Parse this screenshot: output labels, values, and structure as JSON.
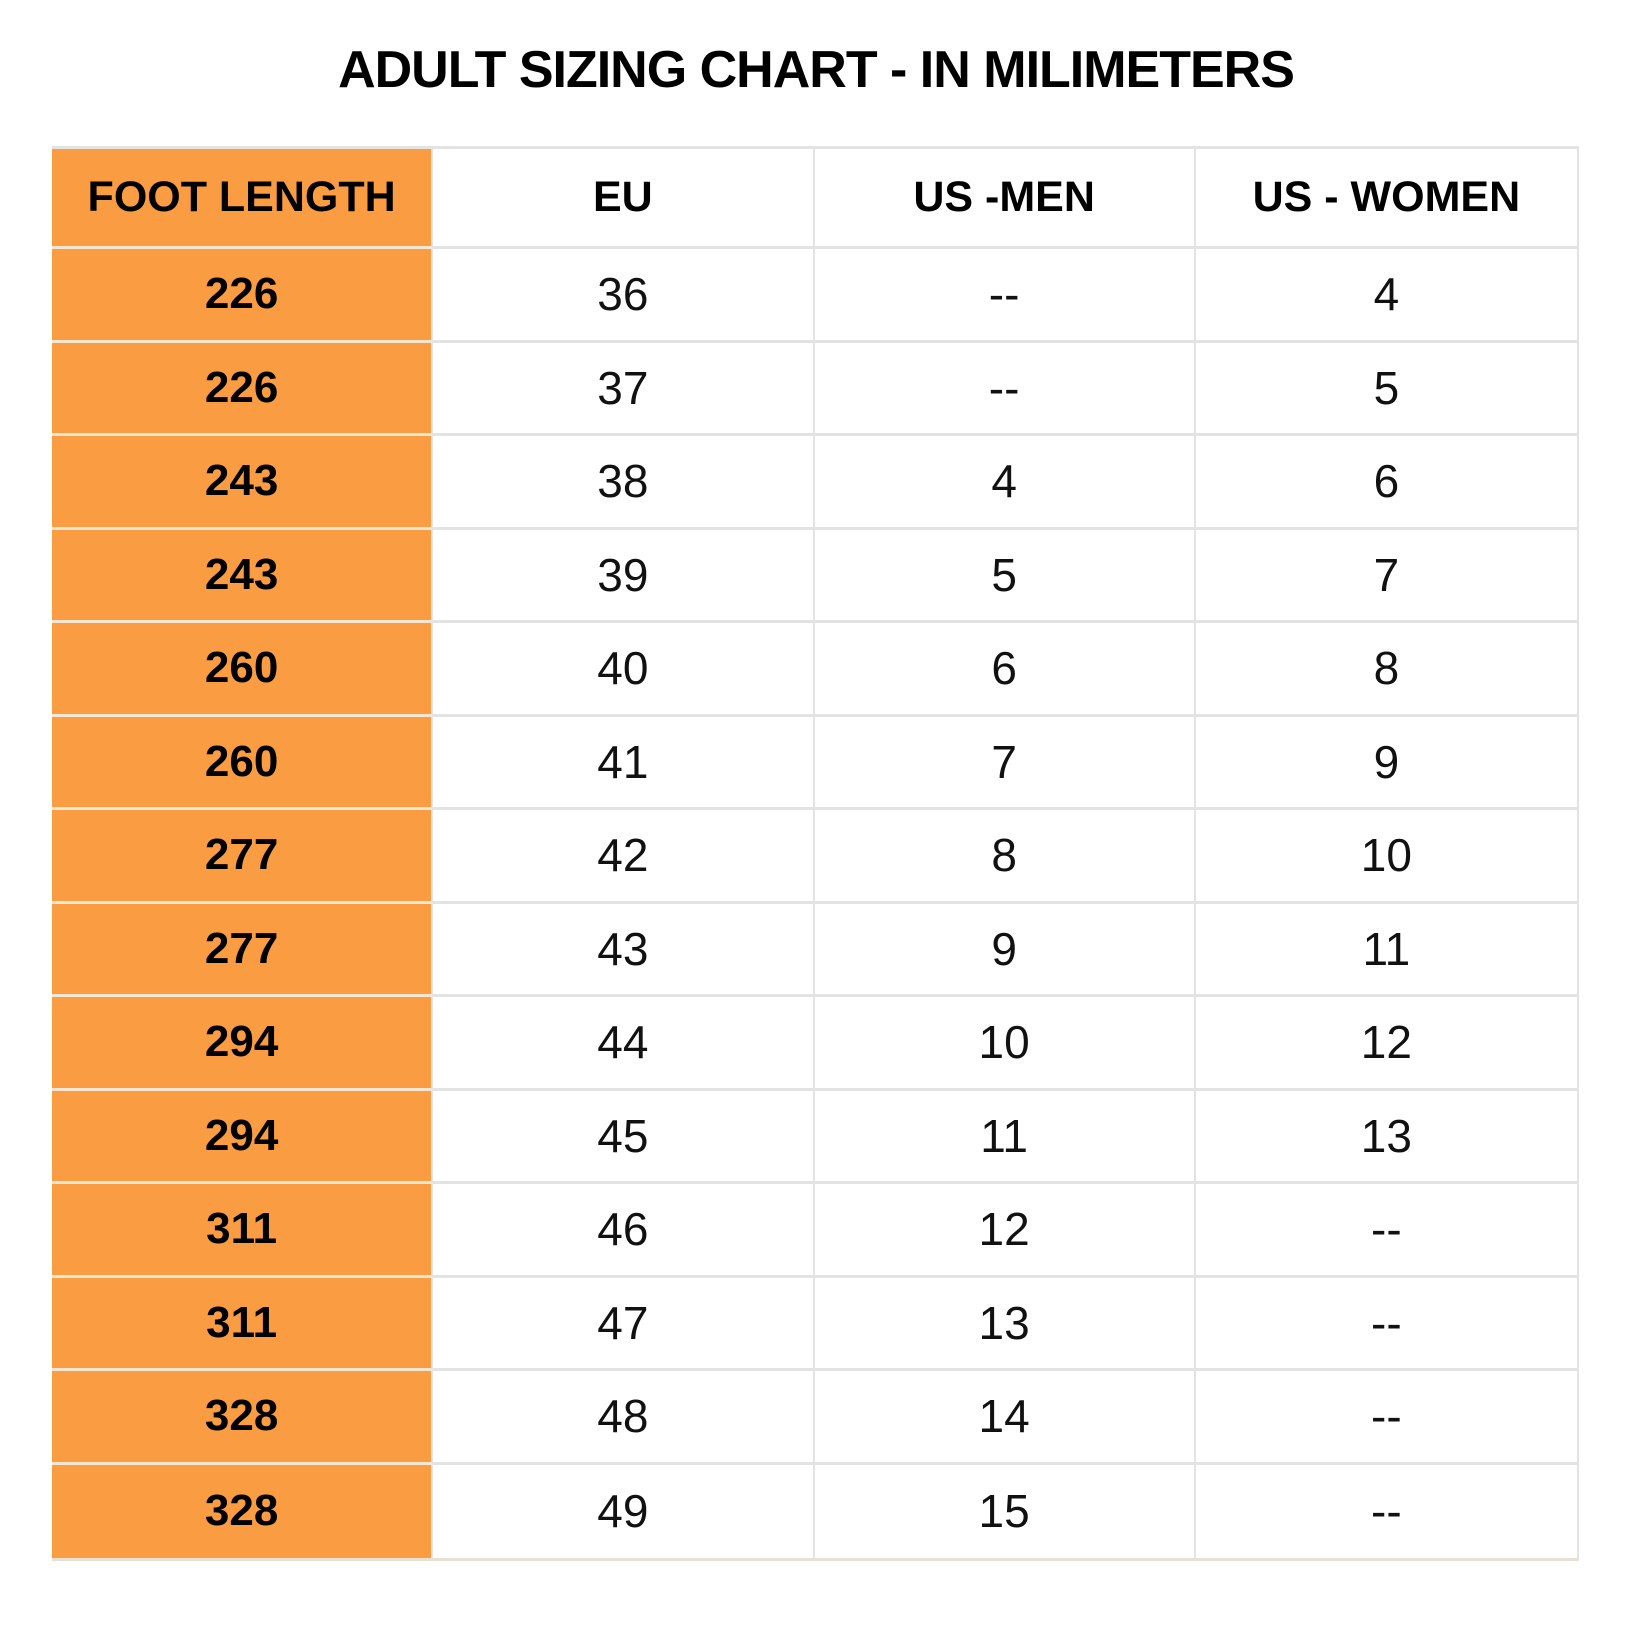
{
  "title": "ADULT SIZING CHART - IN MILIMETERS",
  "colors": {
    "accent_orange": "#f99c42",
    "grid_line": "#e3e3e3",
    "text": "#111111",
    "background": "#ffffff"
  },
  "chart_data": {
    "type": "table",
    "title": "ADULT SIZING CHART - IN MILIMETERS",
    "columns": [
      "FOOT LENGTH",
      "EU",
      "US -MEN",
      "US - WOMEN"
    ],
    "rows": [
      [
        "226",
        "36",
        "--",
        "4"
      ],
      [
        "226",
        "37",
        "--",
        "5"
      ],
      [
        "243",
        "38",
        "4",
        "6"
      ],
      [
        "243",
        "39",
        "5",
        "7"
      ],
      [
        "260",
        "40",
        "6",
        "8"
      ],
      [
        "260",
        "41",
        "7",
        "9"
      ],
      [
        "277",
        "42",
        "8",
        "10"
      ],
      [
        "277",
        "43",
        "9",
        "11"
      ],
      [
        "294",
        "44",
        "10",
        "12"
      ],
      [
        "294",
        "45",
        "11",
        "13"
      ],
      [
        "311",
        "46",
        "12",
        "--"
      ],
      [
        "311",
        "47",
        "13",
        "--"
      ],
      [
        "328",
        "48",
        "14",
        "--"
      ],
      [
        "328",
        "49",
        "15",
        "--"
      ]
    ],
    "layout": {
      "header_background_col1": "#f99c42",
      "grid": true,
      "legend": "none"
    }
  }
}
